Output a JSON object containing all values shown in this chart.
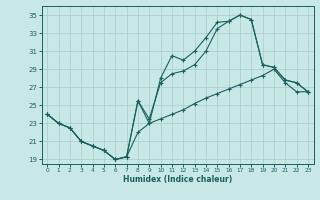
{
  "xlabel": "Humidex (Indice chaleur)",
  "bg_color": "#c8e8e5",
  "line_color": "#1a6060",
  "grid_color": "#a8ccca",
  "xlim": [
    -0.5,
    23.5
  ],
  "ylim": [
    18.5,
    36.0
  ],
  "xticks": [
    0,
    1,
    2,
    3,
    4,
    5,
    6,
    7,
    8,
    9,
    10,
    11,
    12,
    13,
    14,
    15,
    16,
    17,
    18,
    19,
    20,
    21,
    22,
    23
  ],
  "yticks": [
    19,
    21,
    23,
    25,
    27,
    29,
    31,
    33,
    35
  ],
  "curves": [
    [
      24.0,
      23.0,
      22.5,
      21.0,
      20.5,
      20.0,
      19.0,
      19.3,
      25.5,
      23.0,
      28.0,
      30.5,
      30.0,
      31.0,
      32.5,
      34.2,
      34.3,
      35.0,
      34.5,
      29.5,
      29.2,
      27.8,
      27.5,
      26.5
    ],
    [
      24.0,
      23.0,
      22.5,
      21.0,
      20.5,
      20.0,
      19.0,
      19.3,
      25.5,
      23.5,
      27.5,
      28.5,
      28.8,
      29.5,
      31.0,
      33.5,
      34.3,
      35.0,
      34.5,
      29.5,
      29.2,
      27.8,
      27.5,
      26.5
    ],
    [
      24.0,
      23.0,
      22.5,
      21.0,
      20.5,
      20.0,
      19.0,
      19.3,
      22.0,
      23.0,
      23.5,
      24.0,
      24.5,
      25.2,
      25.8,
      26.3,
      26.8,
      27.3,
      27.8,
      28.3,
      29.0,
      27.5,
      26.5,
      26.5
    ]
  ],
  "figwidth": 3.2,
  "figheight": 2.0,
  "dpi": 100
}
